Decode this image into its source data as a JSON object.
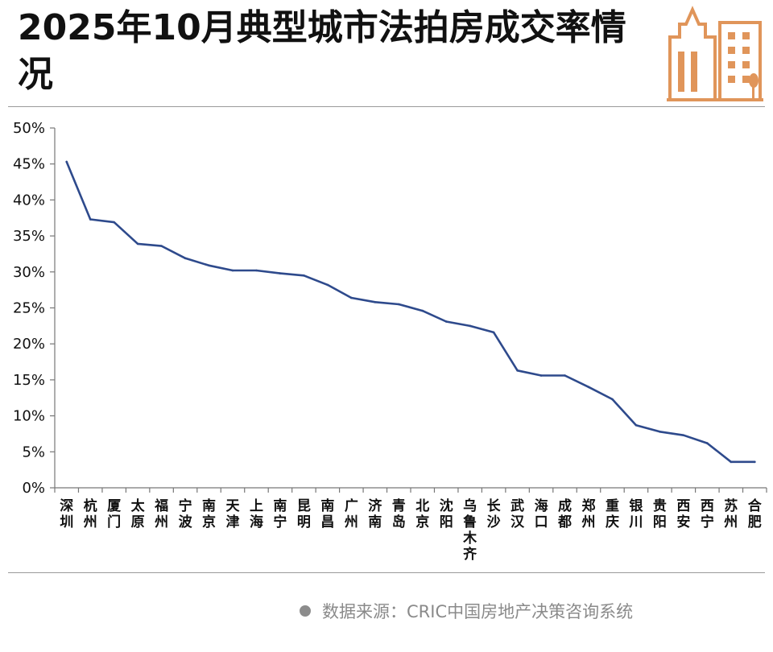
{
  "header": {
    "title": "2025年10月典型城市法拍房成交率情况"
  },
  "logo": {
    "icon": "buildings-icon",
    "color": "#e0955a"
  },
  "footer": {
    "source": "数据来源：CRIC中国房地产决策咨询系统"
  },
  "colors": {
    "line": "#2e4a8c",
    "axis": "#777777"
  },
  "chart_data": {
    "type": "line",
    "title": "2025年10月典型城市法拍房成交率情况",
    "xlabel": "",
    "ylabel": "",
    "ylim": [
      0,
      50
    ],
    "yticks": [
      0,
      5,
      10,
      15,
      20,
      25,
      30,
      35,
      40,
      45,
      50
    ],
    "ytick_labels": [
      "0%",
      "5%",
      "10%",
      "15%",
      "20%",
      "25%",
      "30%",
      "35%",
      "40%",
      "45%",
      "50%"
    ],
    "grid": false,
    "legend": "none",
    "categories": [
      "深圳",
      "杭州",
      "厦门",
      "太原",
      "福州",
      "宁波",
      "南京",
      "天津",
      "上海",
      "南宁",
      "昆明",
      "南昌",
      "广州",
      "济南",
      "青岛",
      "北京",
      "沈阳",
      "乌鲁木齐",
      "长沙",
      "武汉",
      "海口",
      "成都",
      "郑州",
      "重庆",
      "银川",
      "贵阳",
      "西安",
      "西宁",
      "苏州",
      "合肥"
    ],
    "values": [
      45.3,
      37.3,
      36.9,
      33.9,
      33.6,
      31.9,
      30.9,
      30.2,
      30.2,
      29.8,
      29.5,
      28.2,
      26.4,
      25.8,
      25.5,
      24.6,
      23.1,
      22.5,
      21.6,
      16.3,
      15.6,
      15.6,
      14.0,
      12.3,
      8.7,
      7.8,
      7.3,
      6.2,
      3.6,
      3.6
    ]
  }
}
